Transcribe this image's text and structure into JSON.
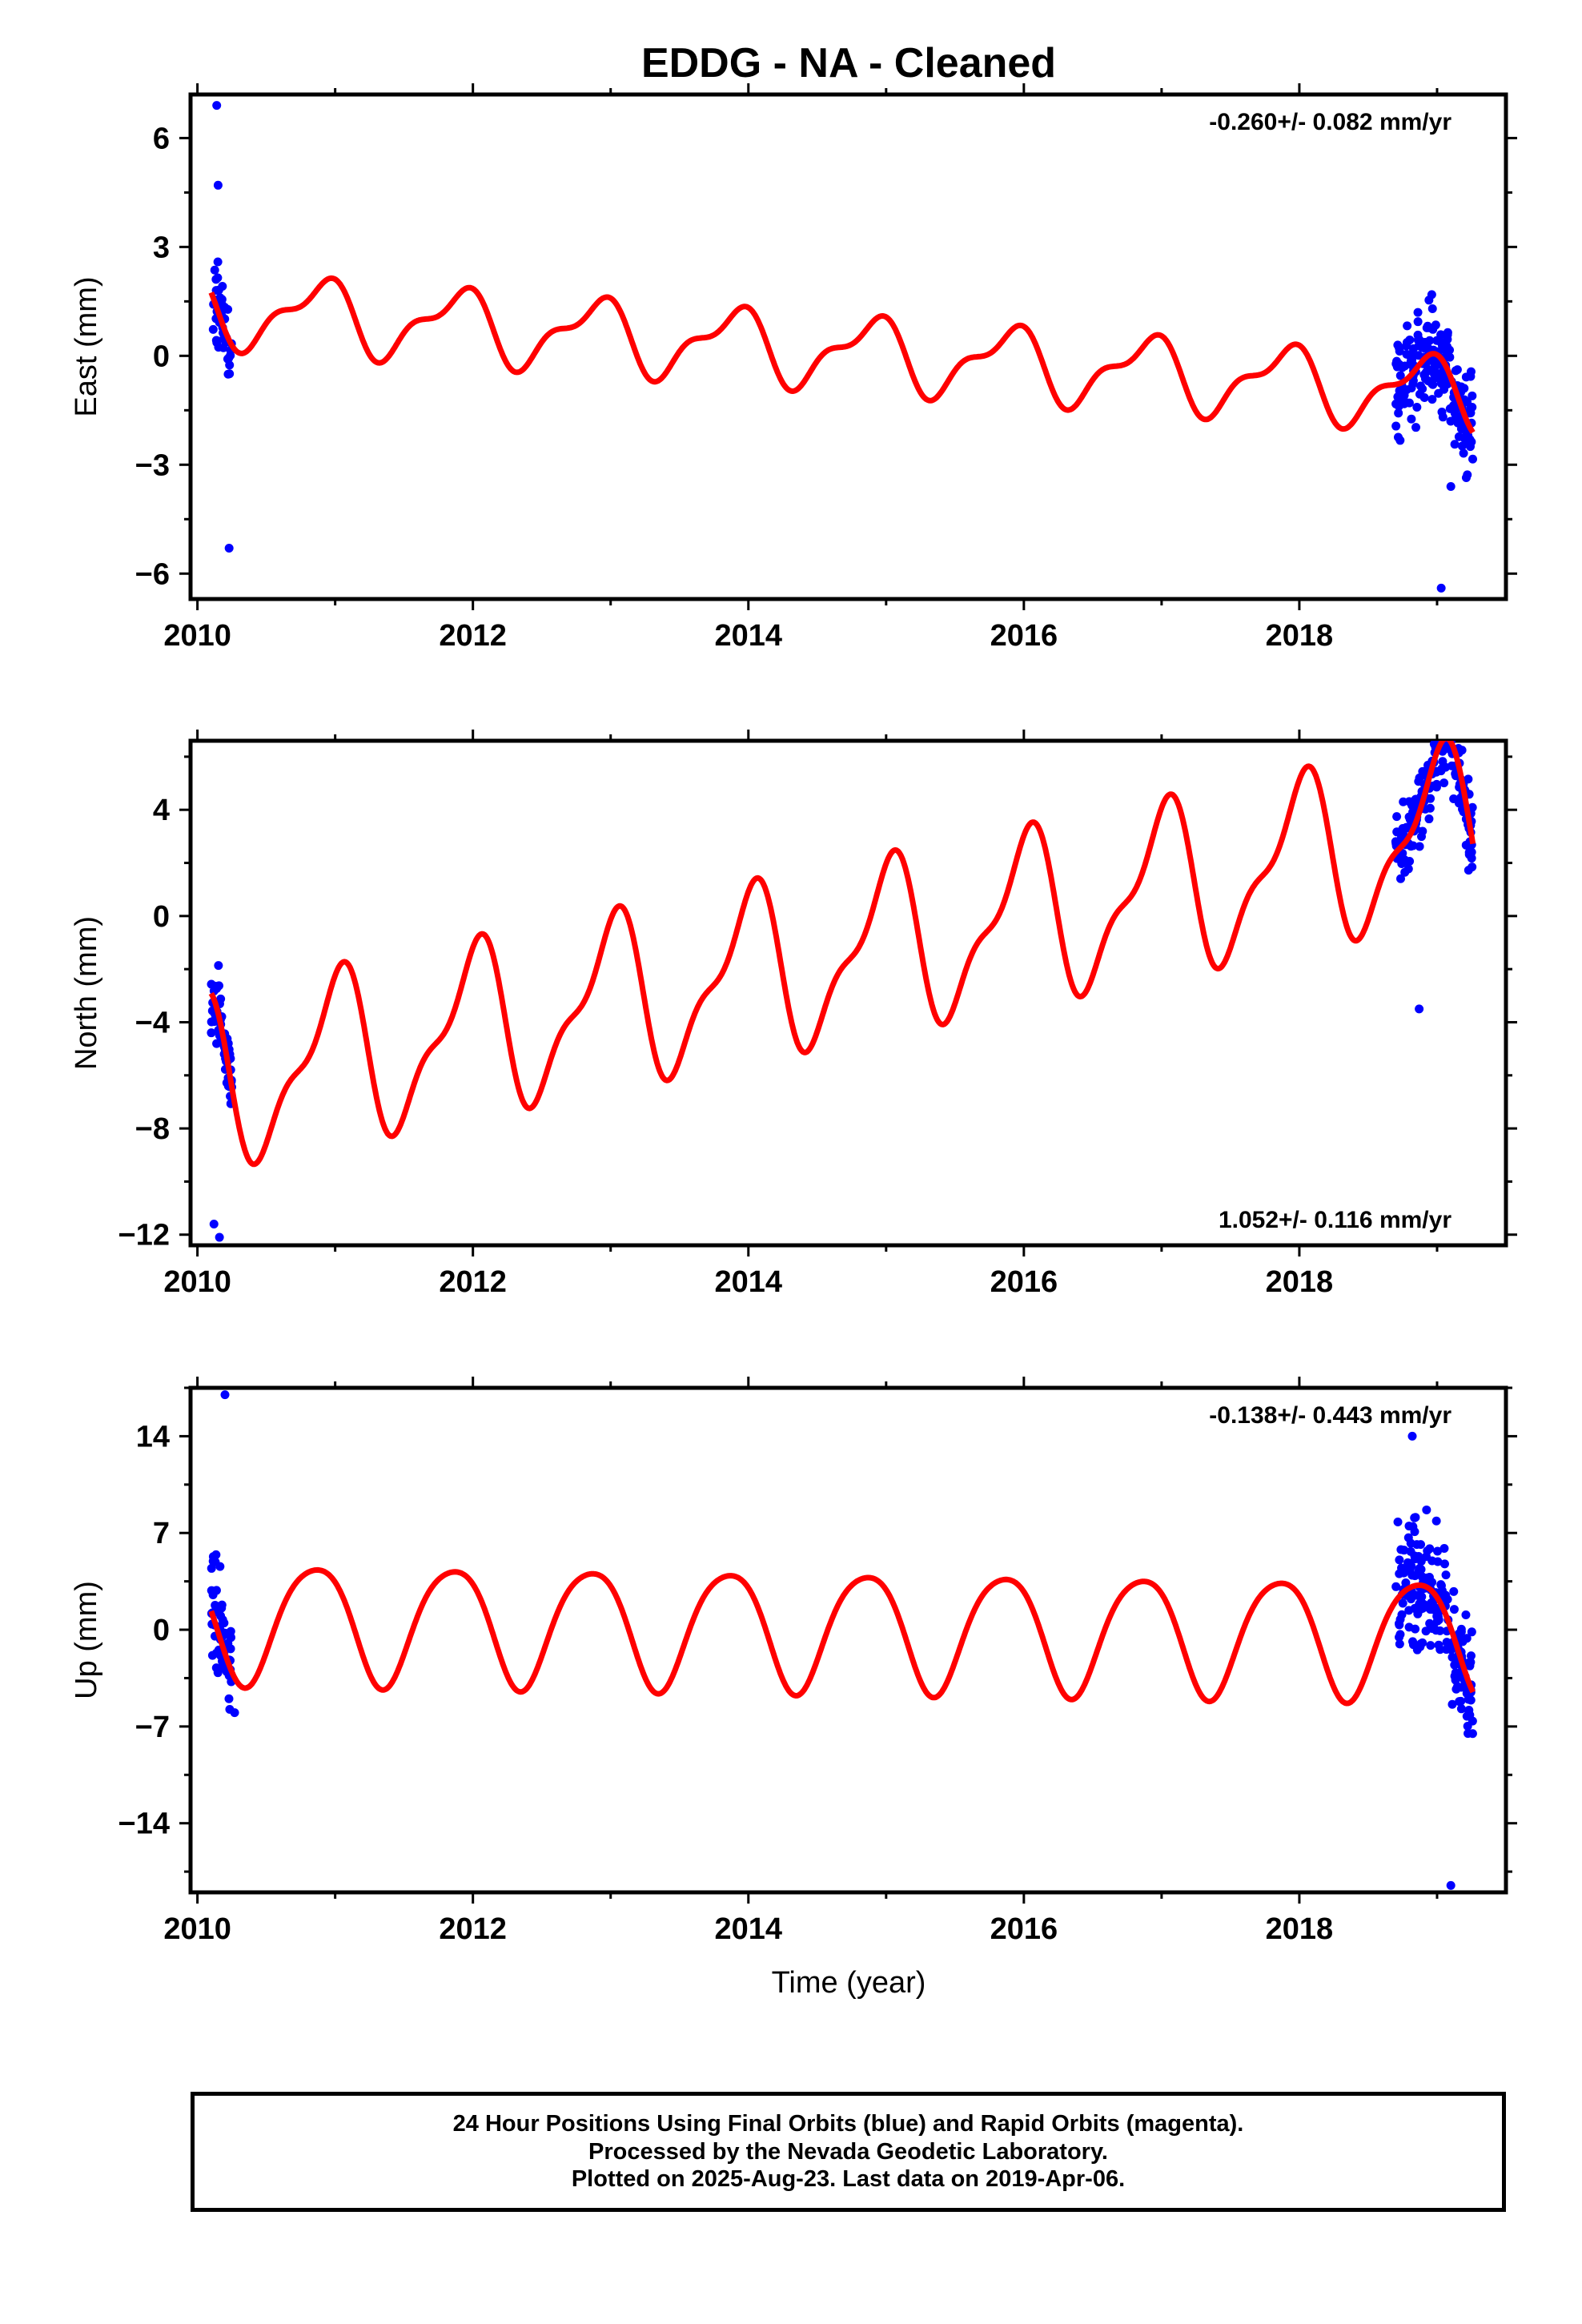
{
  "title": "EDDG  - NA - Cleaned",
  "colors": {
    "data": "#0000ff",
    "model": "#ff0000",
    "frame": "#000000"
  },
  "x_axis": {
    "label": "Time (year)",
    "ticks": [
      2010,
      2012,
      2014,
      2016,
      2018
    ],
    "minor_step": 1,
    "xlim": [
      2009.95,
      2019.5
    ]
  },
  "footer": {
    "line1": "24 Hour Positions Using Final Orbits (blue) and Rapid Orbits (magenta).",
    "line2": "Processed by the Nevada Geodetic Laboratory.",
    "line3": "Plotted on 2025-Aug-23. Last data on 2019-Apr-06."
  },
  "chart_data": [
    {
      "type": "scatter",
      "ylabel": "East (mm)",
      "rate_text": "-0.260+/- 0.082 mm/yr",
      "rate_position": "top-right",
      "ylim": [
        -6.7,
        7.2
      ],
      "yticks": [
        6,
        3,
        0,
        -3,
        -6
      ],
      "model": {
        "base": 1.3,
        "rate": -0.26,
        "amp1": 0.9,
        "ph1": 2.3,
        "amp2": 0.4,
        "ph2": 1.2,
        "t0": 2010.1
      },
      "segments": [
        {
          "start": 2010.1,
          "end": 2010.25,
          "n": 45,
          "noise": 0.85
        },
        {
          "start": 2018.7,
          "end": 2019.26,
          "n": 190,
          "noise": 1.0
        }
      ],
      "outliers": [
        [
          2010.14,
          6.9
        ],
        [
          2010.15,
          4.7
        ],
        [
          2010.23,
          -5.3
        ],
        [
          2019.03,
          -6.4
        ],
        [
          2019.1,
          -3.6
        ]
      ]
    },
    {
      "type": "scatter",
      "ylabel": "North (mm)",
      "rate_text": "1.052+/- 0.116 mm/yr",
      "rate_position": "bottom-right",
      "ylim": [
        -12.4,
        6.6
      ],
      "yticks": [
        4,
        0,
        -4,
        -8,
        -12
      ],
      "model": {
        "base": -6.3,
        "rate": 1.052,
        "amp1": 2.9,
        "ph1": 1.6,
        "amp2": 1.1,
        "ph2": 0.2,
        "t0": 2010.1
      },
      "segments": [
        {
          "start": 2010.1,
          "end": 2010.25,
          "n": 60,
          "noise": 1.0
        },
        {
          "start": 2018.7,
          "end": 2019.26,
          "n": 200,
          "noise": 1.1
        }
      ],
      "outliers": [
        [
          2018.87,
          -3.5
        ],
        [
          2019.04,
          6.2
        ],
        [
          2010.12,
          -11.6
        ],
        [
          2010.16,
          -12.1
        ]
      ]
    },
    {
      "type": "scatter",
      "ylabel": "Up (mm)",
      "rate_text": "-0.138+/- 0.443 mm/yr",
      "rate_position": "top-right",
      "ylim": [
        -19.0,
        17.5
      ],
      "yticks": [
        14,
        7,
        0,
        -7,
        -14
      ],
      "model": {
        "base": 0.7,
        "rate": -0.138,
        "amp1": 4.3,
        "ph1": 2.5,
        "amp2": 0.6,
        "ph2": 0.5,
        "t0": 2010.1
      },
      "segments": [
        {
          "start": 2010.1,
          "end": 2010.25,
          "n": 60,
          "noise": 3.0
        },
        {
          "start": 2018.7,
          "end": 2019.26,
          "n": 200,
          "noise": 3.2
        }
      ],
      "outliers": [
        [
          2010.2,
          17.0
        ],
        [
          2018.82,
          14.0
        ],
        [
          2019.1,
          -18.5
        ],
        [
          2010.27,
          -6.0
        ]
      ]
    }
  ]
}
